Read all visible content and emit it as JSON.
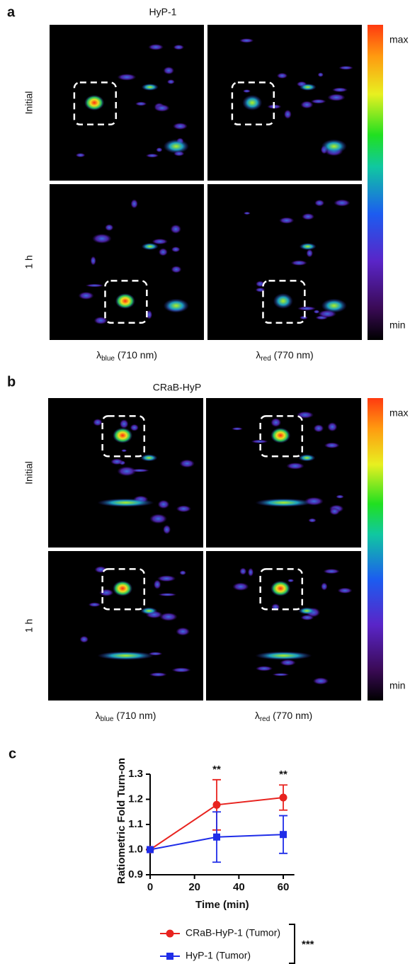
{
  "panel_a": {
    "label": "a",
    "title": "HyP-1",
    "rows": [
      "Initial",
      "1 h"
    ],
    "columns": [
      [
        "λ",
        "blue",
        " (710 nm)"
      ],
      [
        "λ",
        "red",
        " (770 nm)"
      ]
    ],
    "colorbar": {
      "max": "max",
      "min": "min"
    }
  },
  "panel_b": {
    "label": "b",
    "title": "CRaB-HyP",
    "rows": [
      "Initial",
      "1 h"
    ],
    "columns": [
      [
        "λ",
        "blue",
        " (710 nm)"
      ],
      [
        "λ",
        "red",
        " (770 nm)"
      ]
    ],
    "colorbar": {
      "max": "max",
      "min": "min"
    }
  },
  "chart_data": {
    "type": "line",
    "label": "c",
    "x_label": "Time (min)",
    "y_label": "Ratiometric Fold Turn-on",
    "x": [
      0,
      30,
      60
    ],
    "series": [
      {
        "name": "CRaB-HyP-1 (Tumor)",
        "color": "#e8231f",
        "marker": "circle",
        "values": [
          1.0,
          1.178,
          1.207
        ],
        "errors": [
          0,
          0.1,
          0.05
        ]
      },
      {
        "name": "HyP-1 (Tumor)",
        "color": "#1f2de8",
        "marker": "square",
        "values": [
          1.0,
          1.05,
          1.06
        ],
        "errors": [
          0,
          0.1,
          0.075
        ]
      }
    ],
    "xlim": [
      0,
      65
    ],
    "xticks": [
      0,
      20,
      40,
      60
    ],
    "ylim": [
      0.9,
      1.3
    ],
    "yticks": [
      0.9,
      {
        "value": 1.0,
        "label": "1.0"
      },
      1.1,
      1.2,
      1.3
    ],
    "annotations": [
      {
        "x": 30,
        "text": "**"
      },
      {
        "x": 60,
        "text": "**"
      }
    ],
    "legend_annotation": "***"
  }
}
